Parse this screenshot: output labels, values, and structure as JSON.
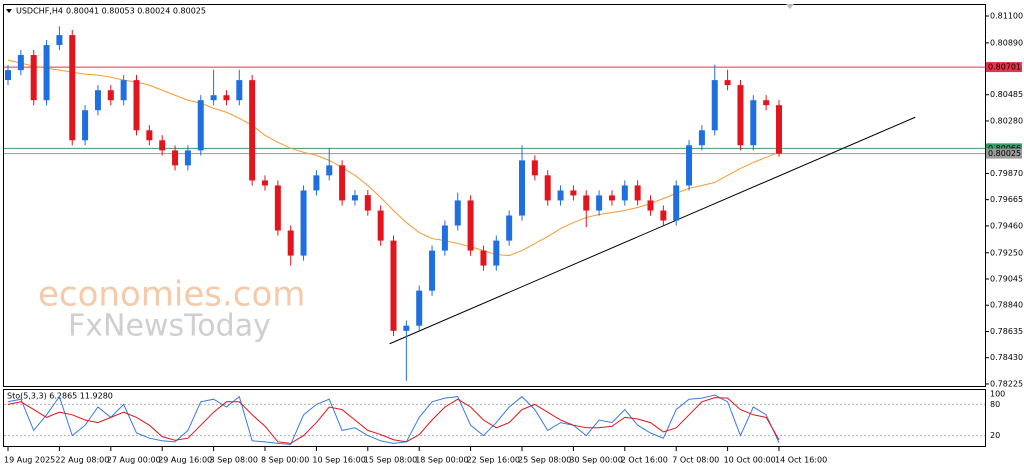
{
  "chart_data": {
    "type": "candlestick",
    "symbol": "USDCHF,H4",
    "quote": "0.80041 0.80053 0.80024 0.80025",
    "watermark": [
      "economies.com",
      "FxNewsToday"
    ],
    "bull_color": "#1f6fe0",
    "bear_color": "#e2141e",
    "categories": [
      "19 Aug 2025",
      null,
      null,
      null,
      "22 Aug 08:00",
      null,
      null,
      null,
      "27 Aug 00:00",
      null,
      null,
      null,
      "29 Aug 16:00",
      null,
      null,
      null,
      "3 Sep 08:00",
      null,
      null,
      null,
      "8 Sep 00:00",
      null,
      null,
      null,
      "10 Sep 16:00",
      null,
      null,
      null,
      "15 Sep 08:00",
      null,
      null,
      null,
      "18 Sep 00:00",
      null,
      null,
      null,
      "22 Sep 16:00",
      null,
      null,
      null,
      "25 Sep 08:00",
      null,
      null,
      null,
      "30 Sep 00:00",
      null,
      null,
      null,
      "2 Oct 16:00",
      null,
      null,
      null,
      "7 Oct 08:00",
      null,
      null,
      null,
      "10 Oct 00:00",
      null,
      null,
      null,
      "14 Oct 16:00"
    ],
    "open": [
      0.806,
      0.80677,
      0.80795,
      0.80442,
      0.80873,
      0.80951,
      0.80129,
      0.80364,
      0.8052,
      0.80442,
      0.80599,
      0.80207,
      0.80129,
      0.8005,
      0.79933,
      0.8005,
      0.80442,
      0.80481,
      0.80442,
      0.80599,
      0.79815,
      0.79776,
      0.79424,
      0.79228,
      0.79737,
      0.79855,
      0.79933,
      0.79659,
      0.797,
      0.7958,
      0.79345,
      0.7864,
      0.7868,
      0.78954,
      0.79267,
      0.79463,
      0.79659,
      0.79267,
      0.7915,
      0.79345,
      0.79541,
      0.79972,
      0.79855,
      0.79659,
      0.79737,
      0.79698,
      0.7958,
      0.79698,
      0.79659,
      0.79776,
      0.79659,
      0.7958,
      0.79502,
      0.79776,
      0.8009,
      0.80207,
      0.80599,
      0.8056,
      0.8009,
      0.80442,
      0.80403
    ],
    "high": [
      0.80717,
      0.80835,
      0.80835,
      0.80913,
      0.8102,
      0.80991,
      0.80404,
      0.8056,
      0.8056,
      0.80639,
      0.80639,
      0.80247,
      0.80169,
      0.8009,
      0.8009,
      0.80482,
      0.8068,
      0.80521,
      0.8068,
      0.80639,
      0.79855,
      0.79816,
      0.79464,
      0.79777,
      0.79895,
      0.8007,
      0.79973,
      0.7974,
      0.7974,
      0.7962,
      0.79385,
      0.7872,
      0.78994,
      0.79307,
      0.79503,
      0.7972,
      0.79699,
      0.79307,
      0.79385,
      0.79581,
      0.8009,
      0.80012,
      0.79895,
      0.79777,
      0.79777,
      0.79738,
      0.79738,
      0.79738,
      0.79816,
      0.79816,
      0.79699,
      0.7962,
      0.79816,
      0.8013,
      0.80247,
      0.8072,
      0.8068,
      0.806,
      0.80482,
      0.80482,
      0.80443
    ],
    "low": [
      0.8056,
      0.80637,
      0.80402,
      0.80402,
      0.80833,
      0.80089,
      0.80089,
      0.80324,
      0.80402,
      0.80402,
      0.80167,
      0.80089,
      0.8001,
      0.79893,
      0.79893,
      0.8001,
      0.80402,
      0.80402,
      0.80402,
      0.79775,
      0.79736,
      0.79384,
      0.7915,
      0.79188,
      0.79697,
      0.79815,
      0.79619,
      0.79619,
      0.7954,
      0.79305,
      0.786,
      0.7825,
      0.7864,
      0.78914,
      0.79227,
      0.79423,
      0.79227,
      0.7911,
      0.7911,
      0.79305,
      0.79501,
      0.79815,
      0.79619,
      0.79619,
      0.79658,
      0.7945,
      0.7954,
      0.79619,
      0.79619,
      0.79619,
      0.7954,
      0.79462,
      0.79462,
      0.79736,
      0.8005,
      0.80167,
      0.8052,
      0.8005,
      0.8005,
      0.80363,
      0.8
    ],
    "close": [
      0.80677,
      0.80795,
      0.80442,
      0.80873,
      0.80951,
      0.80129,
      0.80364,
      0.8052,
      0.80442,
      0.80599,
      0.80207,
      0.80129,
      0.8005,
      0.79933,
      0.8005,
      0.80442,
      0.80481,
      0.80442,
      0.80599,
      0.79815,
      0.79776,
      0.79424,
      0.79228,
      0.79737,
      0.79855,
      0.79933,
      0.79659,
      0.797,
      0.7958,
      0.79345,
      0.7864,
      0.7868,
      0.78954,
      0.79267,
      0.79463,
      0.79659,
      0.79267,
      0.7915,
      0.79345,
      0.79541,
      0.79972,
      0.79855,
      0.79659,
      0.79737,
      0.79698,
      0.7958,
      0.79698,
      0.79659,
      0.79776,
      0.79659,
      0.7958,
      0.79502,
      0.79776,
      0.8009,
      0.80207,
      0.80599,
      0.8056,
      0.8009,
      0.80442,
      0.80403,
      0.80025
    ],
    "moving_average": {
      "color": "#f59a30",
      "values": [
        0.80755,
        0.80732,
        0.80708,
        0.80693,
        0.80677,
        0.80661,
        0.80646,
        0.80638,
        0.80622,
        0.80599,
        0.80583,
        0.8056,
        0.8052,
        0.80481,
        0.80442,
        0.80419,
        0.80379,
        0.80348,
        0.80301,
        0.80246,
        0.80168,
        0.80113,
        0.80066,
        0.80035,
        0.80011,
        0.79972,
        0.79917,
        0.79855,
        0.79776,
        0.79682,
        0.7958,
        0.79486,
        0.79408,
        0.79361,
        0.79345,
        0.79322,
        0.79298,
        0.79267,
        0.79236,
        0.79228,
        0.79267,
        0.79322,
        0.79377,
        0.79439,
        0.79486,
        0.79526,
        0.79549,
        0.79565,
        0.7958,
        0.79604,
        0.79635,
        0.79674,
        0.79714,
        0.79753,
        0.79776,
        0.798,
        0.79855,
        0.79909,
        0.79956,
        0.79996,
        0.80035
      ]
    },
    "trendline": {
      "color": "#000000",
      "points": [
        [
          29.7,
          0.78539
        ],
        [
          70.6,
          0.80309
        ]
      ]
    },
    "levels": [
      {
        "value": 0.80701,
        "label": "0.80701",
        "color": "#e8314a"
      },
      {
        "value": 0.80066,
        "label": "0.80066",
        "color": "#3c9a6c"
      },
      {
        "value": 0.80025,
        "label": "0.80025",
        "color": "#9a9a9a"
      }
    ],
    "ylim": [
      0.78209,
      0.81186
    ],
    "yticks": [
      {
        "value": 0.811,
        "label": "0.81100"
      },
      {
        "value": 0.8089,
        "label": "0.80890"
      },
      {
        "value": 0.80485,
        "label": "0.80485"
      },
      {
        "value": 0.8028,
        "label": "0.80280"
      },
      {
        "value": 0.7987,
        "label": "0.79870"
      },
      {
        "value": 0.79665,
        "label": "0.79665"
      },
      {
        "value": 0.7946,
        "label": "0.79460"
      },
      {
        "value": 0.7925,
        "label": "0.79250"
      },
      {
        "value": 0.79045,
        "label": "0.79045"
      },
      {
        "value": 0.7884,
        "label": "0.78840"
      },
      {
        "value": 0.78635,
        "label": "0.78635"
      },
      {
        "value": 0.7843,
        "label": "0.78430"
      },
      {
        "value": 0.78225,
        "label": "0.78225"
      }
    ],
    "oscillator": {
      "label": "Sto(5,3,3) 6.2865 11.9280",
      "ylim": [
        0,
        100
      ],
      "yticks": [
        100,
        80,
        20
      ],
      "series": [
        {
          "name": "K",
          "color": "#3a7be0",
          "values": [
            85,
            90,
            30,
            60,
            95,
            20,
            40,
            75,
            55,
            80,
            25,
            15,
            10,
            8,
            30,
            85,
            90,
            75,
            95,
            10,
            8,
            5,
            3,
            60,
            80,
            90,
            30,
            35,
            20,
            10,
            5,
            8,
            55,
            85,
            92,
            95,
            40,
            20,
            45,
            75,
            95,
            70,
            30,
            45,
            40,
            20,
            50,
            45,
            70,
            40,
            25,
            15,
            70,
            90,
            92,
            98,
            85,
            20,
            75,
            60,
            6.2865
          ]
        },
        {
          "name": "D",
          "color": "#e2141e",
          "values": [
            80,
            85,
            70,
            55,
            65,
            60,
            50,
            45,
            55,
            65,
            55,
            40,
            18,
            11,
            15,
            40,
            65,
            85,
            85,
            60,
            38,
            8,
            5,
            20,
            45,
            75,
            70,
            50,
            30,
            22,
            12,
            8,
            22,
            50,
            75,
            90,
            75,
            50,
            35,
            45,
            70,
            80,
            65,
            50,
            40,
            35,
            35,
            38,
            55,
            52,
            45,
            27,
            35,
            60,
            85,
            93,
            92,
            70,
            60,
            55,
            11.928
          ]
        }
      ]
    }
  }
}
